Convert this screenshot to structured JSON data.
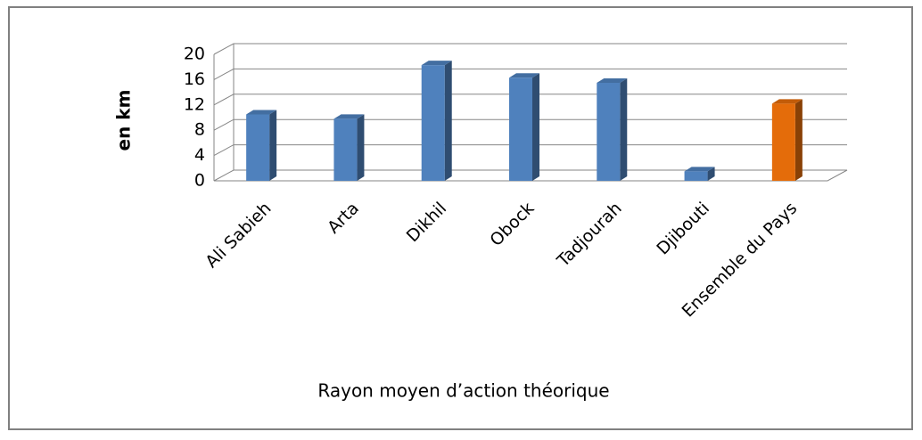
{
  "chart_data": {
    "type": "bar3d",
    "title": "Rayon moyen d’action théorique",
    "y_label": "en km",
    "categories": [
      "Ali Sabieh",
      "Arta",
      "Dikhil",
      "Obock",
      "Tadjourah",
      "Djibouti",
      "Ensemble du Pays"
    ],
    "values": [
      10.5,
      9.8,
      18.3,
      16.3,
      15.5,
      1.5,
      12.2
    ],
    "colors": [
      "#4f81bd",
      "#4f81bd",
      "#4f81bd",
      "#4f81bd",
      "#4f81bd",
      "#4f81bd",
      "#e46c0a"
    ],
    "ylim": [
      0,
      20
    ],
    "yticks": [
      0,
      4,
      8,
      12,
      16,
      20
    ],
    "grid": true
  }
}
